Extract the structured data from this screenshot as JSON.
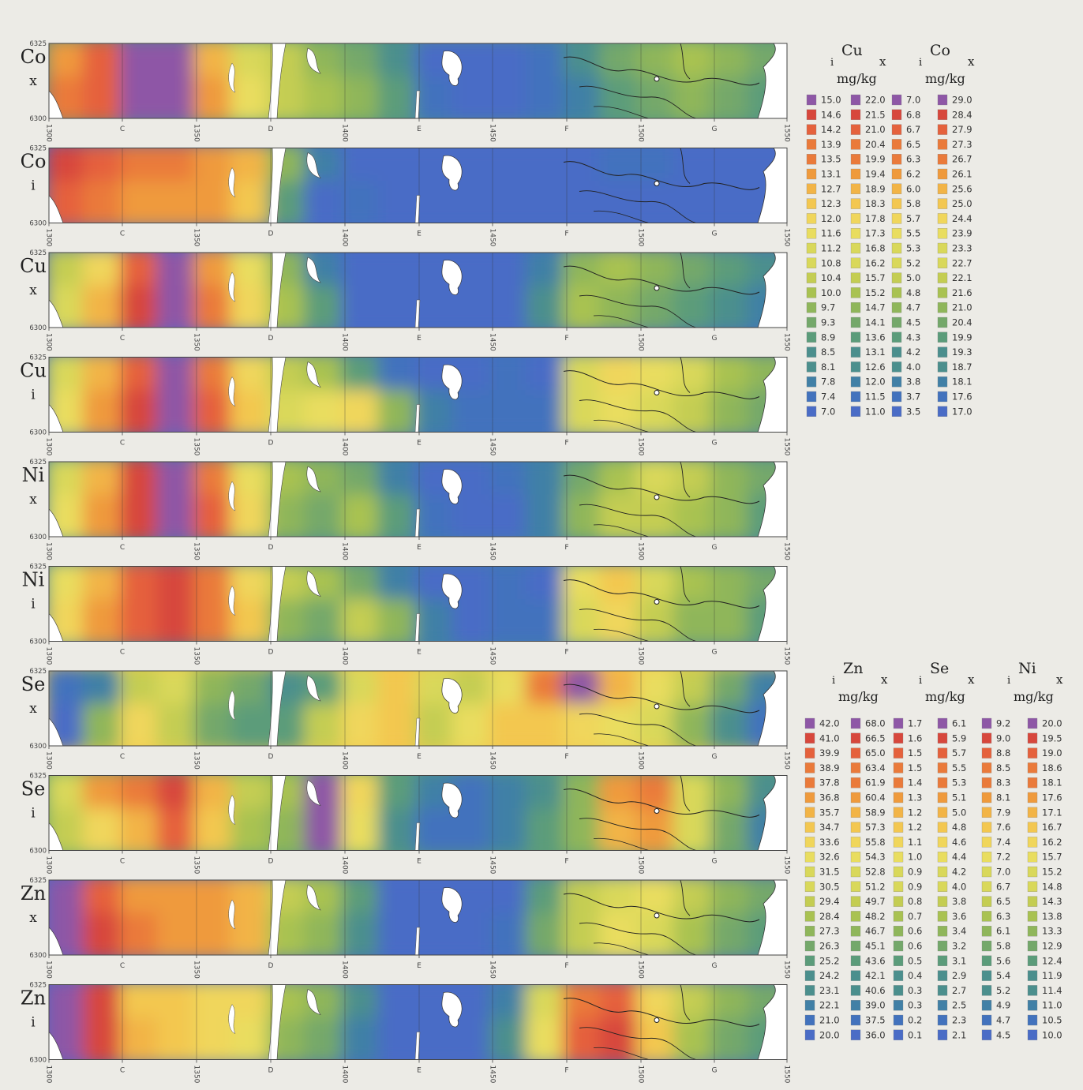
{
  "y_axis": {
    "top": "6325",
    "bottom": "6300"
  },
  "x_axis": {
    "numbers": [
      "1300",
      "1350",
      "1400",
      "1450",
      "1500",
      "1550"
    ],
    "letters": [
      "C",
      "D",
      "E",
      "F",
      "G"
    ]
  },
  "panels": [
    {
      "element": "Co",
      "suffix": "x"
    },
    {
      "element": "Co",
      "suffix": "i"
    },
    {
      "element": "Cu",
      "suffix": "x"
    },
    {
      "element": "Cu",
      "suffix": "i"
    },
    {
      "element": "Ni",
      "suffix": "x"
    },
    {
      "element": "Ni",
      "suffix": "i"
    },
    {
      "element": "Se",
      "suffix": "x"
    },
    {
      "element": "Se",
      "suffix": "i"
    },
    {
      "element": "Zn",
      "suffix": "x"
    },
    {
      "element": "Zn",
      "suffix": "i"
    }
  ],
  "legend_groups": [
    {
      "headers": [
        {
          "element": "Cu",
          "sub_i": "i",
          "sub_x": "x",
          "unit": "mg/kg"
        },
        {
          "element": "Co",
          "sub_i": "i",
          "sub_x": "x",
          "unit": "mg/kg"
        }
      ],
      "columns": [
        [
          "15.0",
          "14.6",
          "14.2",
          "13.9",
          "13.5",
          "13.1",
          "12.7",
          "12.3",
          "12.0",
          "11.6",
          "11.2",
          "10.8",
          "10.4",
          "10.0",
          "9.7",
          "9.3",
          "8.9",
          "8.5",
          "8.1",
          "7.8",
          "7.4",
          "7.0"
        ],
        [
          "22.0",
          "21.5",
          "21.0",
          "20.4",
          "19.9",
          "19.4",
          "18.9",
          "18.3",
          "17.8",
          "17.3",
          "16.8",
          "16.2",
          "15.7",
          "15.2",
          "14.7",
          "14.1",
          "13.6",
          "13.1",
          "12.6",
          "12.0",
          "11.5",
          "11.0"
        ],
        [
          "7.0",
          "6.8",
          "6.7",
          "6.5",
          "6.3",
          "6.2",
          "6.0",
          "5.8",
          "5.7",
          "5.5",
          "5.3",
          "5.2",
          "5.0",
          "4.8",
          "4.7",
          "4.5",
          "4.3",
          "4.2",
          "4.0",
          "3.8",
          "3.7",
          "3.5"
        ],
        [
          "29.0",
          "28.4",
          "27.9",
          "27.3",
          "26.7",
          "26.1",
          "25.6",
          "25.0",
          "24.4",
          "23.9",
          "23.3",
          "22.7",
          "22.1",
          "21.6",
          "21.0",
          "20.4",
          "19.9",
          "19.3",
          "18.7",
          "18.1",
          "17.6",
          "17.0"
        ]
      ]
    },
    {
      "headers": [
        {
          "element": "Zn",
          "sub_i": "i",
          "sub_x": "x",
          "unit": "mg/kg"
        },
        {
          "element": "Se",
          "sub_i": "i",
          "sub_x": "x",
          "unit": "mg/kg"
        },
        {
          "element": "Ni",
          "sub_i": "i",
          "sub_x": "x",
          "unit": "mg/kg"
        }
      ],
      "columns": [
        [
          "42.0",
          "41.0",
          "39.9",
          "38.9",
          "37.8",
          "36.8",
          "35.7",
          "34.7",
          "33.6",
          "32.6",
          "31.5",
          "30.5",
          "29.4",
          "28.4",
          "27.3",
          "26.3",
          "25.2",
          "24.2",
          "23.1",
          "22.1",
          "21.0",
          "20.0"
        ],
        [
          "68.0",
          "66.5",
          "65.0",
          "63.4",
          "61.9",
          "60.4",
          "58.9",
          "57.3",
          "55.8",
          "54.3",
          "52.8",
          "51.2",
          "49.7",
          "48.2",
          "46.7",
          "45.1",
          "43.6",
          "42.1",
          "40.6",
          "39.0",
          "37.5",
          "36.0"
        ],
        [
          "1.7",
          "1.6",
          "1.5",
          "1.5",
          "1.4",
          "1.3",
          "1.2",
          "1.2",
          "1.1",
          "1.0",
          "0.9",
          "0.9",
          "0.8",
          "0.7",
          "0.6",
          "0.6",
          "0.5",
          "0.4",
          "0.3",
          "0.3",
          "0.2",
          "0.1"
        ],
        [
          "6.1",
          "5.9",
          "5.7",
          "5.5",
          "5.3",
          "5.1",
          "5.0",
          "4.8",
          "4.6",
          "4.4",
          "4.2",
          "4.0",
          "3.8",
          "3.6",
          "3.4",
          "3.2",
          "3.1",
          "2.9",
          "2.7",
          "2.5",
          "2.3",
          "2.1"
        ],
        [
          "9.2",
          "9.0",
          "8.8",
          "8.5",
          "8.3",
          "8.1",
          "7.9",
          "7.6",
          "7.4",
          "7.2",
          "7.0",
          "6.7",
          "6.5",
          "6.3",
          "6.1",
          "5.8",
          "5.6",
          "5.4",
          "5.2",
          "4.9",
          "4.7",
          "4.5"
        ],
        [
          "20.0",
          "19.5",
          "19.0",
          "18.6",
          "18.1",
          "17.6",
          "17.1",
          "16.7",
          "16.2",
          "15.7",
          "15.2",
          "14.8",
          "14.3",
          "13.8",
          "13.3",
          "12.9",
          "12.4",
          "11.9",
          "11.4",
          "11.0",
          "10.5",
          "10.0"
        ]
      ]
    }
  ],
  "colors": {
    "scale": [
      "#8e57a6",
      "#d7473c",
      "#e5613c",
      "#ea7a3a",
      "#ef9a3c",
      "#f2b446",
      "#f3c750",
      "#f0d65b",
      "#e9dd5f",
      "#d9d85a",
      "#c4cd52",
      "#a9c251",
      "#8fb65a",
      "#74a86a",
      "#5b9c7a",
      "#4b8f8d",
      "#4180a6",
      "#4272bd",
      "#4a6cc6"
    ],
    "background": "#ecebe6",
    "land": "#ffffff"
  }
}
